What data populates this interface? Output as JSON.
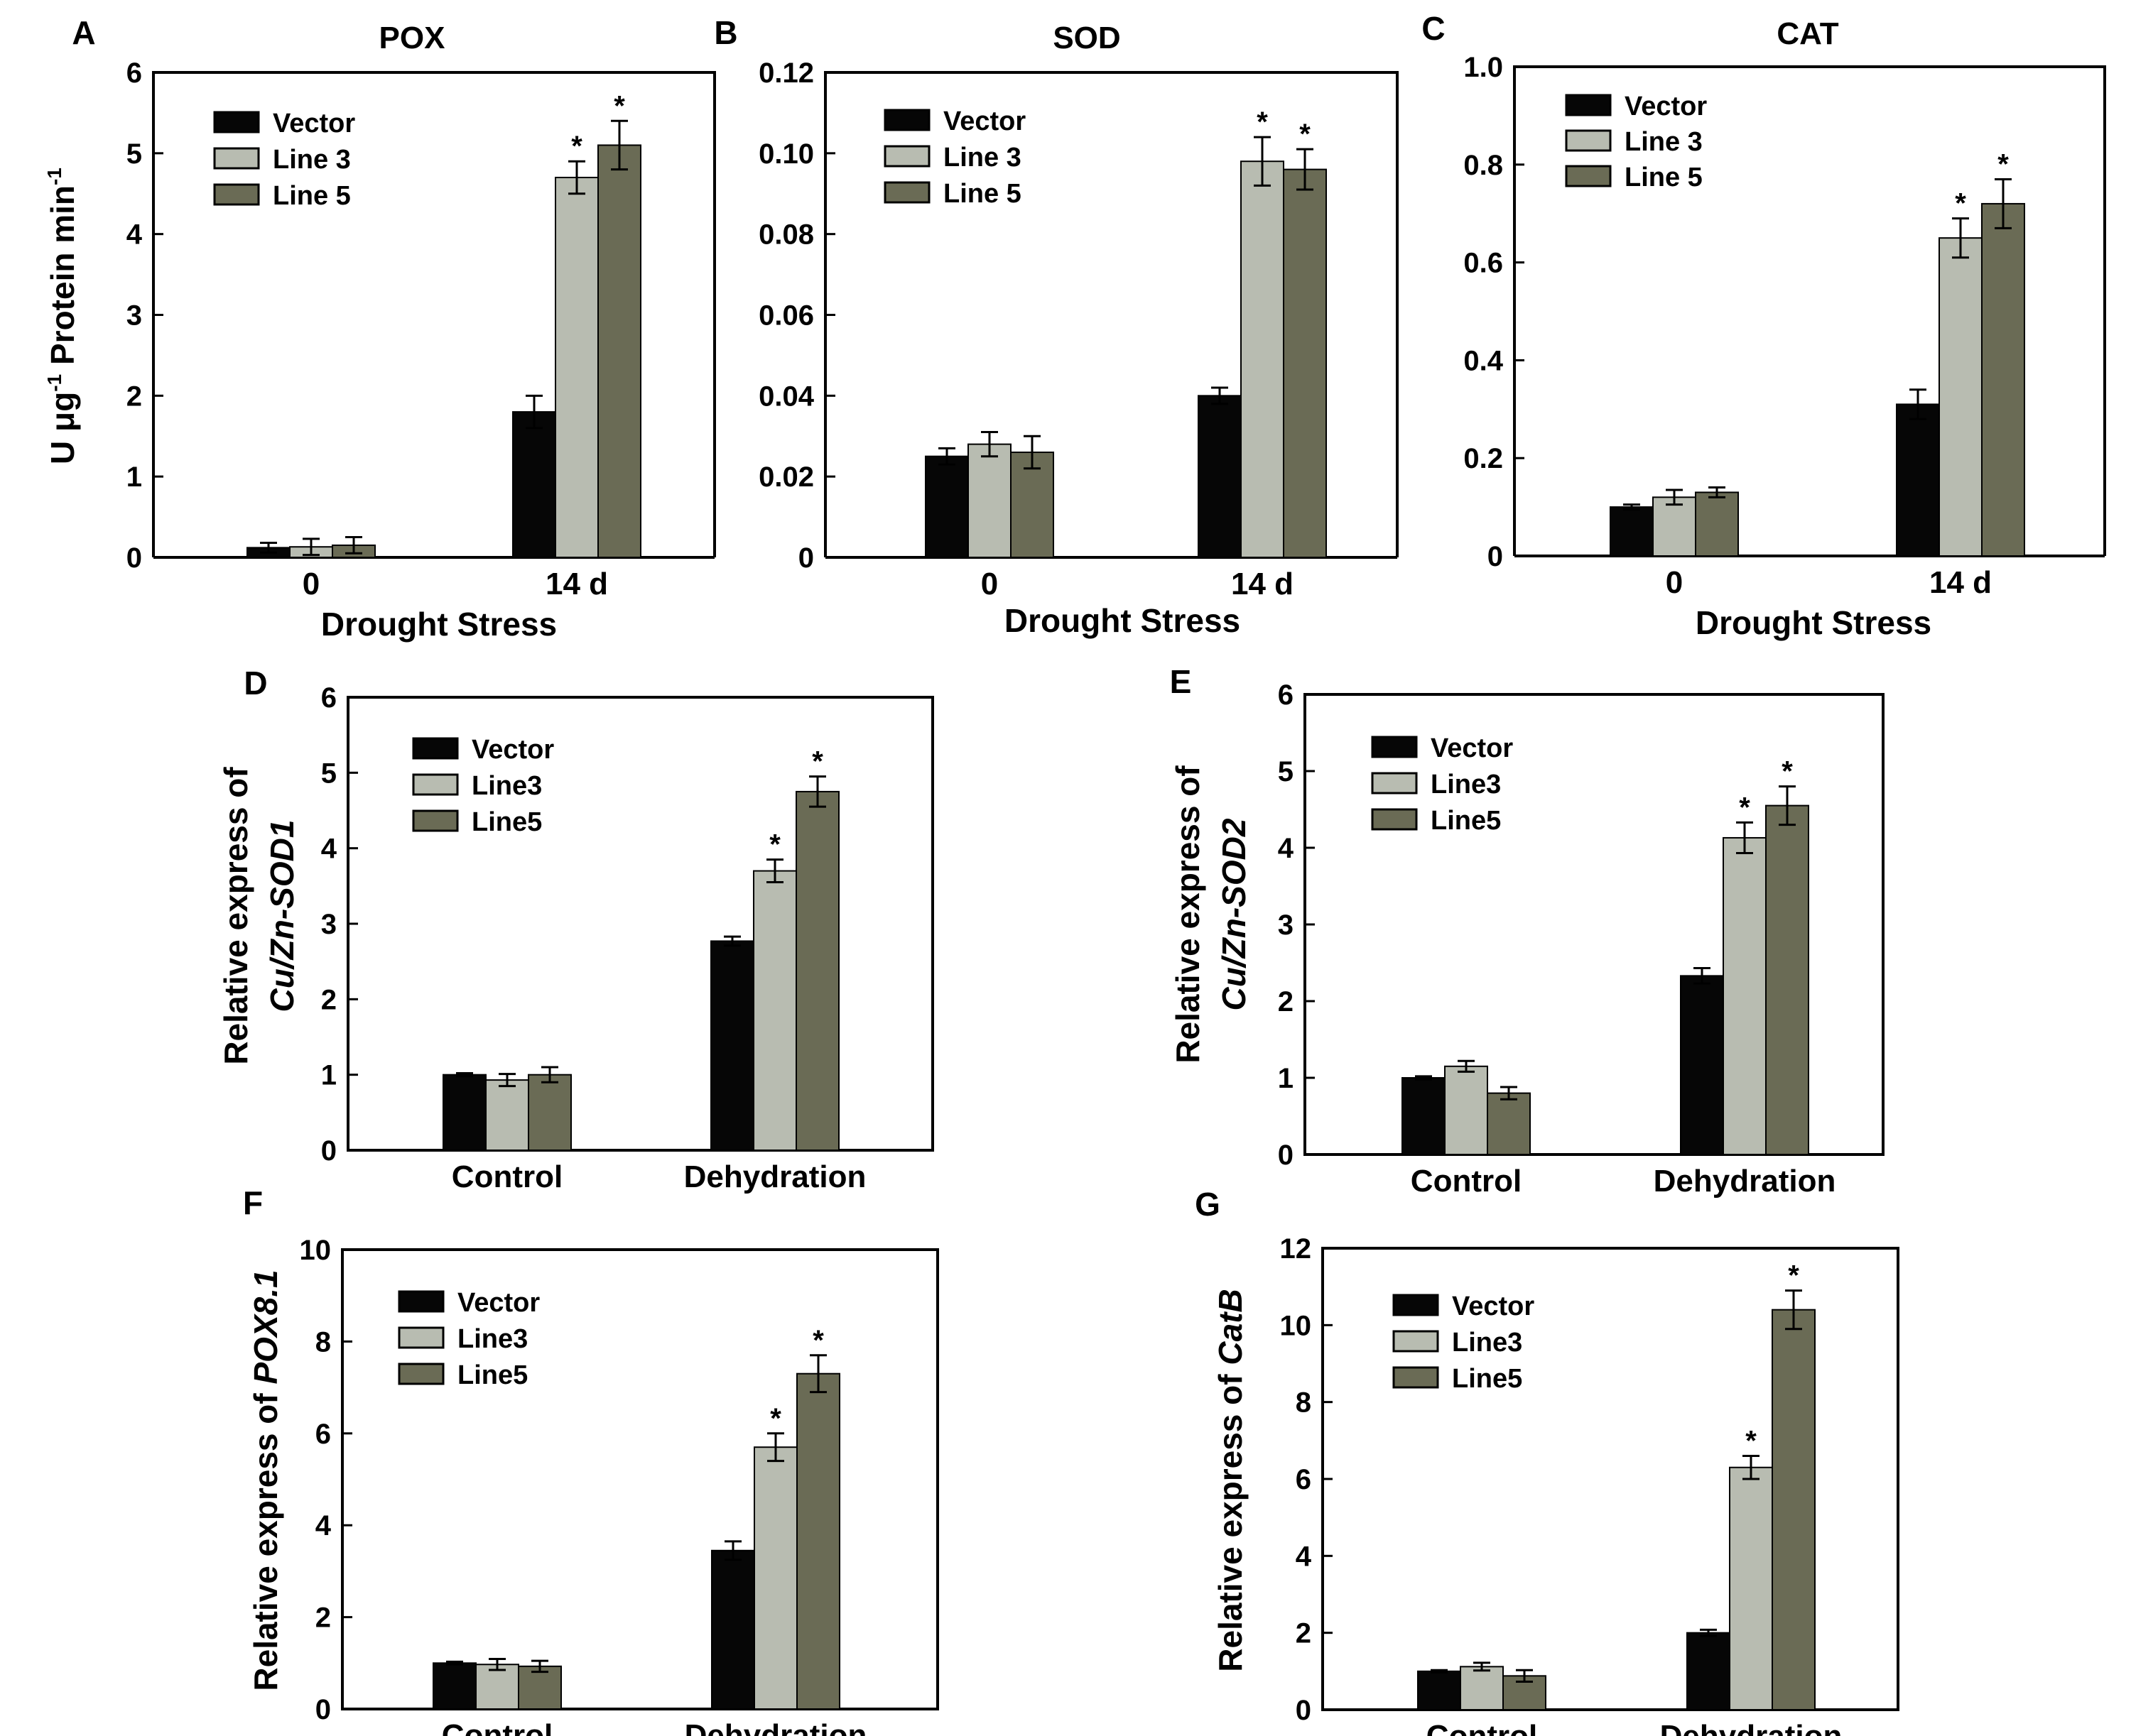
{
  "colors": {
    "Vector": "#060606",
    "Line 3": "#b8bcb1",
    "Line 5": "#6a6b55",
    "Line3": "#b8bcb1",
    "Line5": "#6a6b55"
  },
  "chart_data": [
    {
      "type": "bar",
      "panel": "A",
      "title": "POX",
      "xlabel": "Drought Stress",
      "ylabel": "U μg-1 Protein min-1",
      "ylabel_parts": [
        "U μg",
        "-1",
        " Protein min",
        "-1"
      ],
      "categories": [
        "0",
        "14 d"
      ],
      "ylim": [
        0,
        6
      ],
      "yticks": [
        "0",
        "1",
        "2",
        "3",
        "4",
        "5",
        "6"
      ],
      "series": [
        {
          "name": "Vector",
          "values": [
            0.12,
            1.8
          ],
          "errors": [
            0.06,
            0.2
          ],
          "sig": [
            false,
            false
          ]
        },
        {
          "name": "Line 3",
          "values": [
            0.13,
            4.7
          ],
          "errors": [
            0.1,
            0.2
          ],
          "sig": [
            false,
            true
          ]
        },
        {
          "name": "Line 5",
          "values": [
            0.15,
            5.1
          ],
          "errors": [
            0.1,
            0.3
          ],
          "sig": [
            false,
            true
          ]
        }
      ],
      "significance_mark": "*"
    },
    {
      "type": "bar",
      "panel": "B",
      "title": "SOD",
      "xlabel": "Drought Stress",
      "ylabel": "",
      "categories": [
        "0",
        "14 d"
      ],
      "ylim": [
        0,
        0.12
      ],
      "yticks": [
        "0",
        "0.02",
        "0.04",
        "0.06",
        "0.08",
        "0.10",
        "0.12"
      ],
      "series": [
        {
          "name": "Vector",
          "values": [
            0.025,
            0.04
          ],
          "errors": [
            0.002,
            0.002
          ],
          "sig": [
            false,
            false
          ]
        },
        {
          "name": "Line 3",
          "values": [
            0.028,
            0.098
          ],
          "errors": [
            0.003,
            0.006
          ],
          "sig": [
            false,
            true
          ]
        },
        {
          "name": "Line 5",
          "values": [
            0.026,
            0.096
          ],
          "errors": [
            0.004,
            0.005
          ],
          "sig": [
            false,
            true
          ]
        }
      ],
      "significance_mark": "*"
    },
    {
      "type": "bar",
      "panel": "C",
      "title": "CAT",
      "xlabel": "Drought Stress",
      "ylabel": "",
      "categories": [
        "0",
        "14 d"
      ],
      "ylim": [
        0,
        1.0
      ],
      "yticks": [
        "0",
        "0.2",
        "0.4",
        "0.6",
        "0.8",
        "1.0"
      ],
      "series": [
        {
          "name": "Vector",
          "values": [
            0.1,
            0.31
          ],
          "errors": [
            0.005,
            0.03
          ],
          "sig": [
            false,
            false
          ]
        },
        {
          "name": "Line 3",
          "values": [
            0.12,
            0.65
          ],
          "errors": [
            0.015,
            0.04
          ],
          "sig": [
            false,
            true
          ]
        },
        {
          "name": "Line 5",
          "values": [
            0.13,
            0.72
          ],
          "errors": [
            0.01,
            0.05
          ],
          "sig": [
            false,
            true
          ]
        }
      ],
      "significance_mark": "*"
    },
    {
      "type": "bar",
      "panel": "D",
      "title": "",
      "xlabel": "",
      "ylabel_lines": [
        [
          {
            "t": "Relative express of",
            "i": false
          }
        ],
        [
          {
            "t": "Cu/Zn-SOD1",
            "i": true
          }
        ]
      ],
      "categories": [
        "Control",
        "Dehydration"
      ],
      "ylim": [
        0,
        6
      ],
      "yticks": [
        "0",
        "1",
        "2",
        "3",
        "4",
        "5",
        "6"
      ],
      "series": [
        {
          "name": "Vector",
          "values": [
            1.0,
            2.77
          ],
          "errors": [
            0.02,
            0.06
          ],
          "sig": [
            false,
            false
          ]
        },
        {
          "name": "Line3",
          "values": [
            0.93,
            3.7
          ],
          "errors": [
            0.08,
            0.15
          ],
          "sig": [
            false,
            true
          ]
        },
        {
          "name": "Line5",
          "values": [
            1.0,
            4.75
          ],
          "errors": [
            0.1,
            0.2
          ],
          "sig": [
            false,
            true
          ]
        }
      ],
      "significance_mark": "*"
    },
    {
      "type": "bar",
      "panel": "E",
      "title": "",
      "xlabel": "",
      "ylabel_lines": [
        [
          {
            "t": "Relative express of",
            "i": false
          }
        ],
        [
          {
            "t": "Cu/Zn-SOD2",
            "i": true
          }
        ]
      ],
      "categories": [
        "Control",
        "Dehydration"
      ],
      "ylim": [
        0,
        6
      ],
      "yticks": [
        "0",
        "1",
        "2",
        "3",
        "4",
        "5",
        "6"
      ],
      "series": [
        {
          "name": "Vector",
          "values": [
            1.0,
            2.33
          ],
          "errors": [
            0.02,
            0.1
          ],
          "sig": [
            false,
            false
          ]
        },
        {
          "name": "Line3",
          "values": [
            1.15,
            4.13
          ],
          "errors": [
            0.07,
            0.2
          ],
          "sig": [
            false,
            true
          ]
        },
        {
          "name": "Line5",
          "values": [
            0.8,
            4.55
          ],
          "errors": [
            0.08,
            0.25
          ],
          "sig": [
            false,
            true
          ]
        }
      ],
      "significance_mark": "*"
    },
    {
      "type": "bar",
      "panel": "F",
      "title": "",
      "xlabel": "",
      "ylabel_lines": [
        [
          {
            "t": "Relative express of ",
            "i": false
          },
          {
            "t": "POX8.1",
            "i": true
          }
        ]
      ],
      "categories": [
        "Control",
        "Dehydration"
      ],
      "ylim": [
        0,
        10
      ],
      "yticks": [
        "0",
        "2",
        "4",
        "6",
        "8",
        "10"
      ],
      "series": [
        {
          "name": "Vector",
          "values": [
            1.0,
            3.45
          ],
          "errors": [
            0.03,
            0.2
          ],
          "sig": [
            false,
            false
          ]
        },
        {
          "name": "Line3",
          "values": [
            0.97,
            5.7
          ],
          "errors": [
            0.12,
            0.3
          ],
          "sig": [
            false,
            true
          ]
        },
        {
          "name": "Line5",
          "values": [
            0.93,
            7.3
          ],
          "errors": [
            0.12,
            0.4
          ],
          "sig": [
            false,
            true
          ]
        }
      ],
      "significance_mark": "*"
    },
    {
      "type": "bar",
      "panel": "G",
      "title": "",
      "xlabel": "",
      "ylabel_lines": [
        [
          {
            "t": "Relative express of ",
            "i": false
          },
          {
            "t": "CatB",
            "i": true
          }
        ]
      ],
      "categories": [
        "Control",
        "Dehydration"
      ],
      "ylim": [
        0,
        12
      ],
      "yticks": [
        "0",
        "2",
        "4",
        "6",
        "8",
        "10",
        "12"
      ],
      "series": [
        {
          "name": "Vector",
          "values": [
            1.0,
            2.0
          ],
          "errors": [
            0.03,
            0.08
          ],
          "sig": [
            false,
            false
          ]
        },
        {
          "name": "Line3",
          "values": [
            1.12,
            6.3
          ],
          "errors": [
            0.1,
            0.3
          ],
          "sig": [
            false,
            true
          ]
        },
        {
          "name": "Line5",
          "values": [
            0.88,
            10.4
          ],
          "errors": [
            0.15,
            0.5
          ],
          "sig": [
            false,
            true
          ]
        }
      ],
      "significance_mark": "*"
    }
  ]
}
